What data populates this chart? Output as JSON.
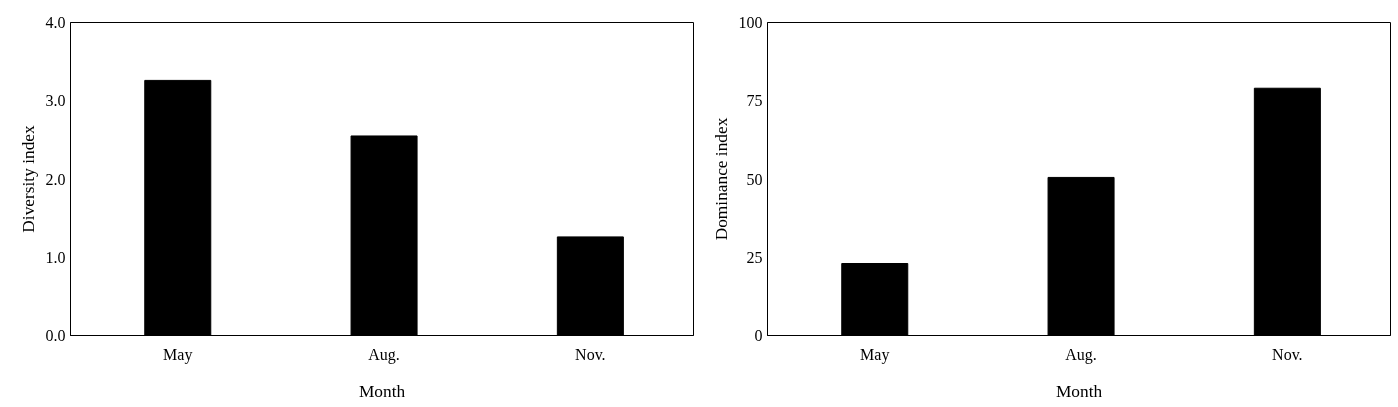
{
  "chart_data": [
    {
      "type": "bar",
      "xlabel": "Month",
      "ylabel": "Diversity index",
      "categories": [
        "May",
        "Aug.",
        "Nov."
      ],
      "values": [
        3.26,
        2.55,
        1.26
      ],
      "color": "#000000",
      "ylim": [
        0,
        4
      ],
      "yticks": [
        {
          "value": 0,
          "label": "0.0"
        },
        {
          "value": 1,
          "label": "1.0"
        },
        {
          "value": 2,
          "label": "2.0"
        },
        {
          "value": 3,
          "label": "3.0"
        },
        {
          "value": 4,
          "label": "4.0"
        }
      ],
      "grid": false
    },
    {
      "type": "bar",
      "xlabel": "Month",
      "ylabel": "Dominance index",
      "categories": [
        "May",
        "Aug.",
        "Nov."
      ],
      "values": [
        23,
        50.5,
        79
      ],
      "color": "#000000",
      "ylim": [
        0,
        100
      ],
      "yticks": [
        0,
        25,
        50,
        75,
        100
      ],
      "grid": false
    }
  ]
}
